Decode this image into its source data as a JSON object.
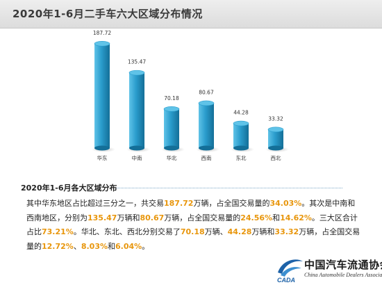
{
  "title": "2020年1-6月二手车六大区域分布情况",
  "colors": {
    "bar_light": "#5fc3e8",
    "bar_mid": "#2a9ccc",
    "bar_dark": "#146f98",
    "highlight": "#e8960c"
  },
  "chart_data": {
    "type": "bar",
    "categories": [
      "华东",
      "中南",
      "华北",
      "西南",
      "东北",
      "西北"
    ],
    "values": [
      187.72,
      135.47,
      70.18,
      80.67,
      44.28,
      33.32
    ],
    "value_labels": [
      "187.72",
      "135.47",
      "70.18",
      "80.67",
      "44.28",
      "33.32"
    ],
    "ylim": [
      0,
      200
    ],
    "grid": false,
    "legend": "none"
  },
  "section": {
    "title": "2020年1-6月各大区域分布",
    "paragraph": [
      {
        "t": "其中华东地区占比超过三分之一，共交易"
      },
      {
        "t": "187.72",
        "hl": true
      },
      {
        "t": "万辆，占全国交易量的"
      },
      {
        "t": "34.03%",
        "hl": true
      },
      {
        "t": "。其次是中南和西南地区，分别为"
      },
      {
        "t": "135.47",
        "hl": true
      },
      {
        "t": "万辆和"
      },
      {
        "t": "80.67",
        "hl": true
      },
      {
        "t": "万辆，占全国交易量的"
      },
      {
        "t": "24.56%",
        "hl": true
      },
      {
        "t": "和"
      },
      {
        "t": "14.62%",
        "hl": true
      },
      {
        "t": "。三大区合计占比"
      },
      {
        "t": "73.21%",
        "hl": true
      },
      {
        "t": "。华北、东北、西北分别交易了"
      },
      {
        "t": "70.18",
        "hl": true
      },
      {
        "t": "万辆、"
      },
      {
        "t": "44.28",
        "hl": true
      },
      {
        "t": "万辆和"
      },
      {
        "t": "33.32",
        "hl": true
      },
      {
        "t": "万辆，占全国交易量的"
      },
      {
        "t": "12.72%",
        "hl": true
      },
      {
        "t": "、"
      },
      {
        "t": "8.03%",
        "hl": true
      },
      {
        "t": "和"
      },
      {
        "t": "6.04%",
        "hl": true
      },
      {
        "t": "。"
      }
    ]
  },
  "logo": {
    "cn": "中国汽车流通协会",
    "en": "China Automobile Dealers Association",
    "mark_text": "CADA",
    "mark_icon": "cada-swoosh-icon"
  }
}
